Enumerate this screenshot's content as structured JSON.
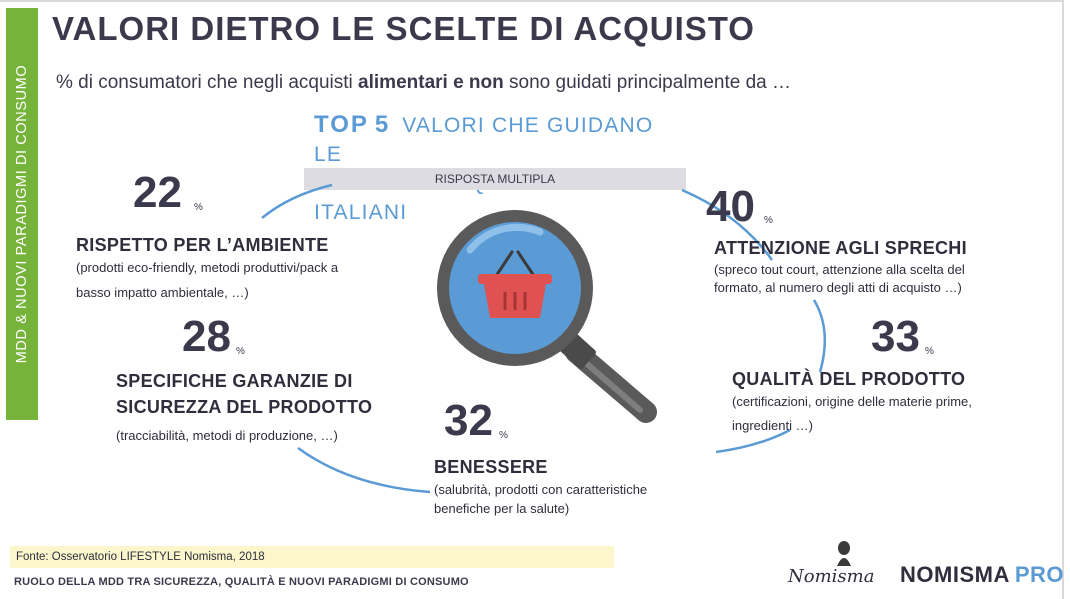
{
  "side_label": "MDD & NUOVI PARADIGMI DI CONSUMO",
  "title": "VALORI DIETRO LE SCELTE DI ACQUISTO",
  "subtitle": {
    "pre": "% di consumatori che negli acquisti ",
    "bold1": "alimentari e non",
    "post": " sono guidati principalmente da …"
  },
  "top5": {
    "top": "TOP",
    "five": "5",
    "line1": "VALORI CHE GUIDANO LE",
    "line2": "SCELTE DI ACQUISTO DEGLI ITALIANI"
  },
  "risposta": "RISPOSTA MULTIPLA",
  "values": [
    {
      "value": "22",
      "unit": "%",
      "heading": "RISPETTO PER L’AMBIENTE",
      "desc1": "(prodotti eco-friendly, metodi produttivi/pack a",
      "desc2": "basso impatto ambientale, …)"
    },
    {
      "value": "40",
      "unit": "%",
      "heading": "ATTENZIONE AGLI SPRECHI",
      "desc1": "(spreco tout court, attenzione alla scelta del",
      "desc2": "formato, al numero degli atti di acquisto …)"
    },
    {
      "value": "28",
      "unit": "%",
      "heading1": "SPECIFICHE GARANZIE DI",
      "heading2": "SICUREZZA DEL PRODOTTO",
      "desc1": "(tracciabilità, metodi di produzione, …)"
    },
    {
      "value": "33",
      "unit": "%",
      "heading": "QUALITÀ DEL PRODOTTO",
      "desc1": "(certificazioni, origine delle materie prime,",
      "desc2": "ingredienti …)"
    },
    {
      "value": "32",
      "unit": "%",
      "heading": "BENESSERE",
      "desc1": "(salubrità, prodotti con caratteristiche",
      "desc2": "benefiche per la salute)"
    }
  ],
  "source": "Fonte: Osservatorio LIFESTYLE Nomisma, 2018",
  "footer": "RUOLO DELLA MDD TRA SICUREZZA, QUALITÀ E NUOVI PARADIGMI DI CONSUMO",
  "logo_text": "Nomisma",
  "brand": {
    "name": "NOMISMA",
    "pro": "PRO"
  },
  "colors": {
    "accent_blue": "#5b9bd5",
    "green": "#76b33a",
    "basket_red": "#e05252",
    "text_dark": "#3b3a4c"
  },
  "icons": [
    "magnifier-icon",
    "basket-icon",
    "nomisma-logo"
  ]
}
